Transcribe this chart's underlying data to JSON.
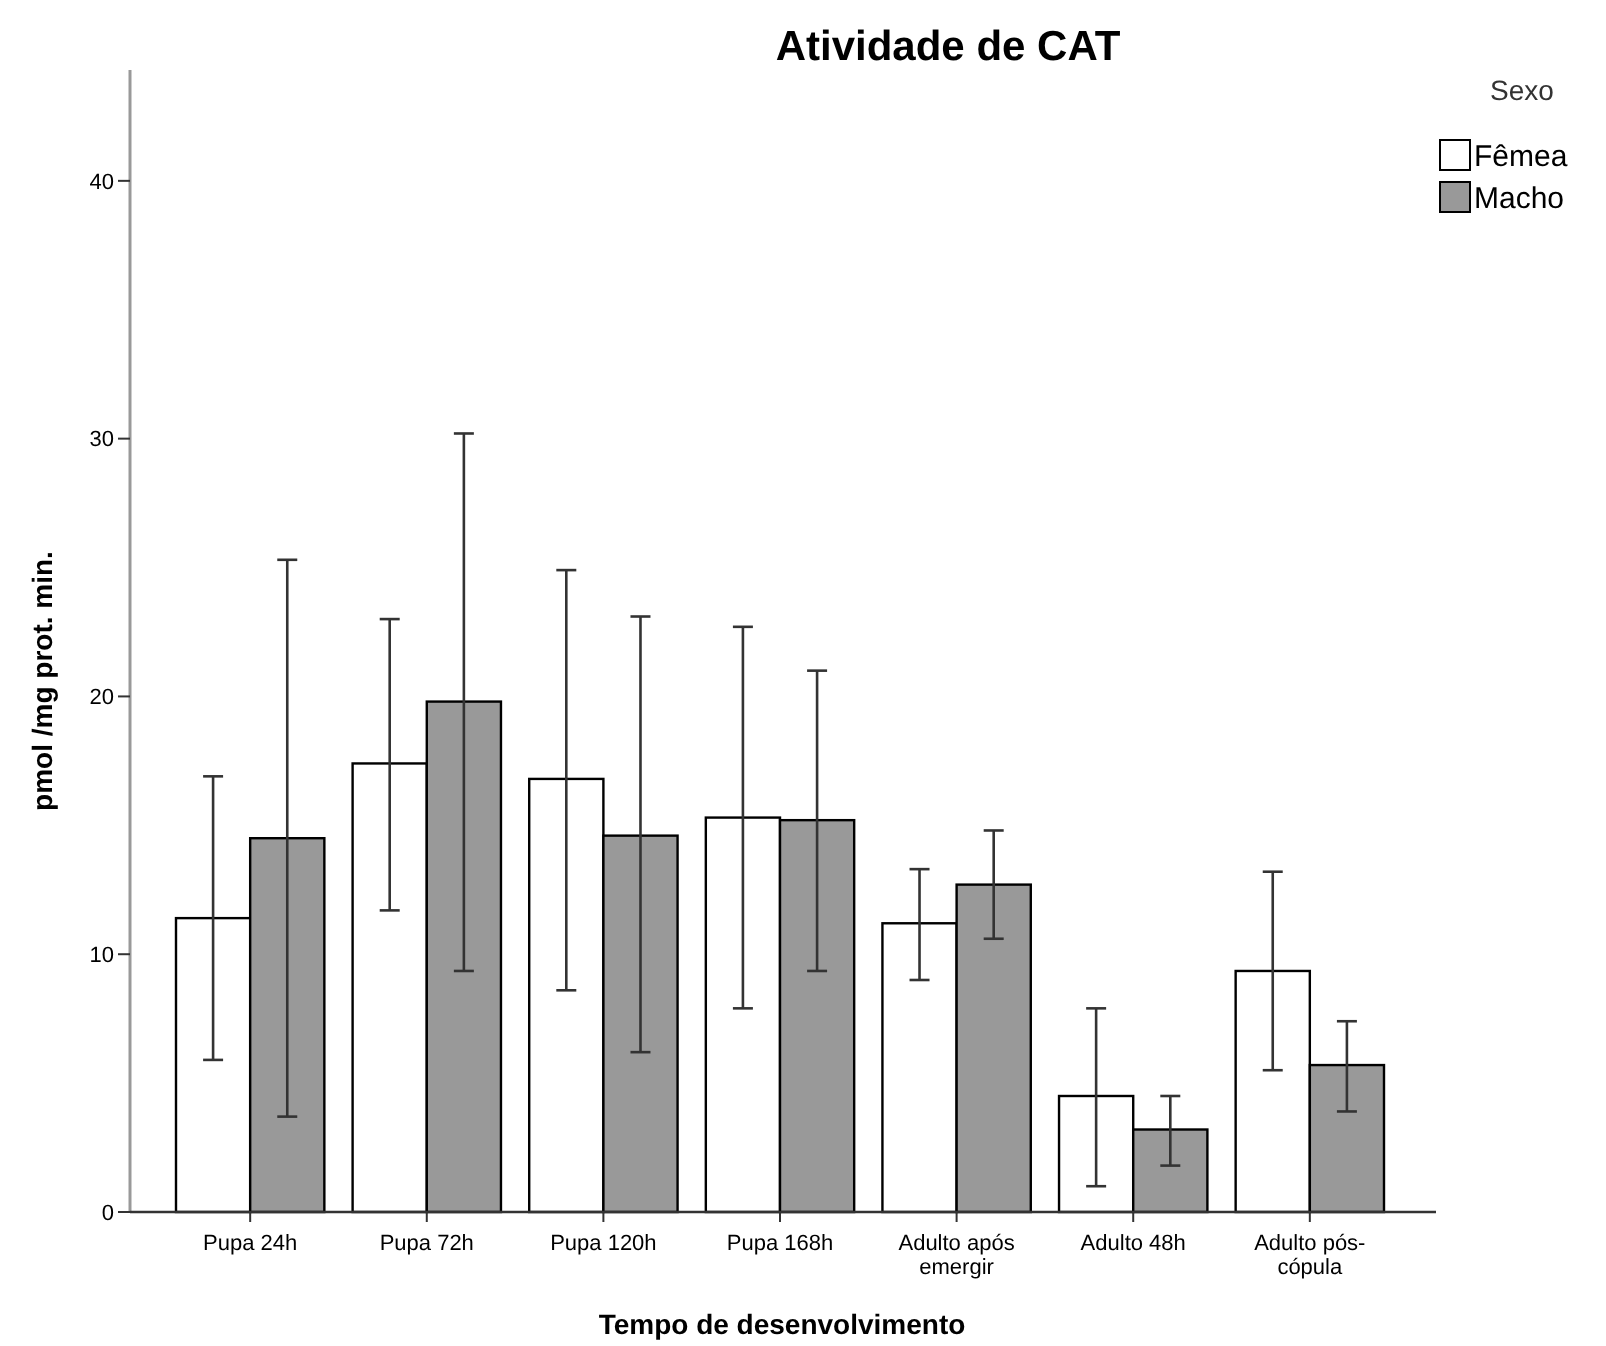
{
  "chart_data": {
    "type": "bar",
    "title": "Atividade de CAT",
    "xlabel": "Tempo de desenvolvimento",
    "ylabel": "pmol /mg prot. min.",
    "legend_title": "Sexo",
    "legend": "top right",
    "categories": [
      "Pupa 24h",
      "Pupa 72h",
      "Pupa 120h",
      "Pupa 168h",
      "Adulto após emergir",
      "Adulto 48h",
      "Adulto pós-cópula"
    ],
    "series": [
      {
        "name": "Fêmea",
        "color": "#ffffff",
        "values": [
          11.4,
          17.4,
          16.8,
          15.3,
          11.2,
          4.5,
          9.35
        ],
        "errors": [
          [
            5.9,
            16.9
          ],
          [
            11.7,
            23.0
          ],
          [
            8.6,
            24.9
          ],
          [
            7.9,
            22.7
          ],
          [
            9.0,
            13.3
          ],
          [
            1.0,
            7.9
          ],
          [
            5.5,
            13.2
          ]
        ]
      },
      {
        "name": "Macho",
        "color": "#999999",
        "values": [
          14.5,
          19.8,
          14.6,
          15.2,
          12.7,
          3.2,
          5.7
        ],
        "errors": [
          [
            3.7,
            25.3
          ],
          [
            9.35,
            30.2
          ],
          [
            6.2,
            23.1
          ],
          [
            9.35,
            21.0
          ],
          [
            10.6,
            14.8
          ],
          [
            1.8,
            4.5
          ],
          [
            3.9,
            7.4
          ]
        ]
      }
    ],
    "ylim": [
      0,
      44.3
    ],
    "yticks": [
      0,
      10,
      20,
      30,
      40
    ],
    "grid": false
  }
}
